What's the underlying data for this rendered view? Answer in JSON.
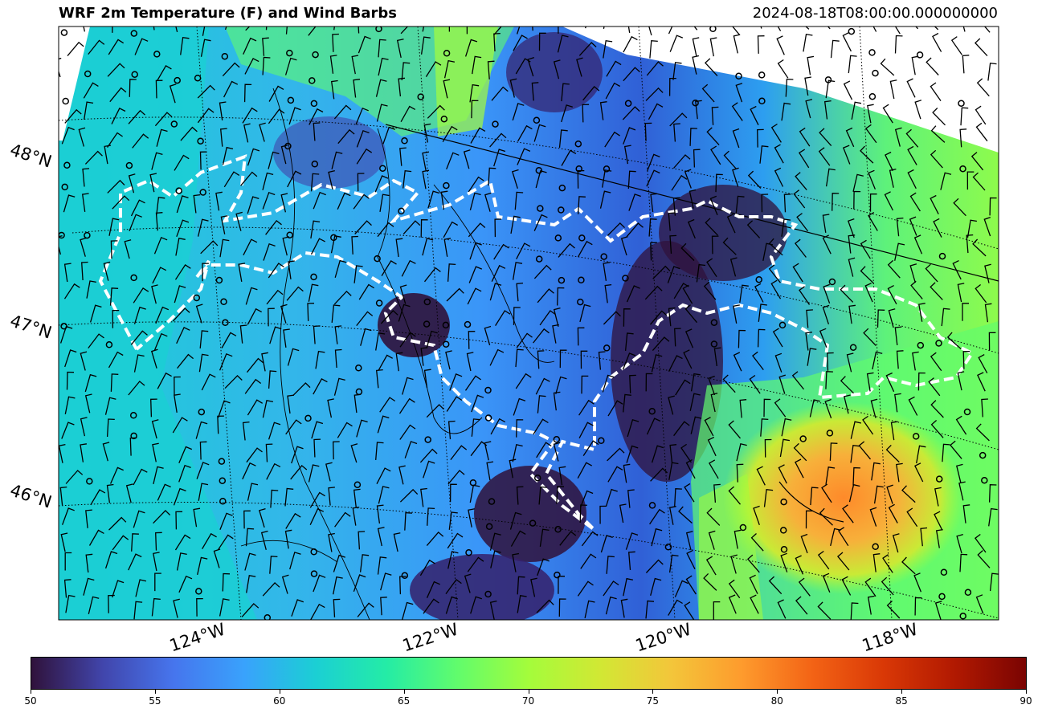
{
  "header": {
    "title": "WRF 2m Temperature (F) and Wind Barbs",
    "timestamp": "2024-08-18T08:00:00.000000000"
  },
  "map": {
    "latitude_labels": [
      "48°N",
      "47°N",
      "46°N"
    ],
    "longitude_labels": [
      "124°W",
      "122°W",
      "120°W",
      "118°W"
    ],
    "field": "2m Temperature (F)",
    "overlay": "Wind Barbs",
    "boundary_style": "white dashed",
    "gridline_style": "black dotted"
  },
  "colorbar": {
    "min": 50,
    "max": 90,
    "ticks": [
      "50",
      "55",
      "60",
      "65",
      "70",
      "75",
      "80",
      "85",
      "90"
    ],
    "colormap": "turbo",
    "colors": [
      "#30123b",
      "#4145ab",
      "#4675ed",
      "#39a2fc",
      "#1bcfd4",
      "#24eca6",
      "#61fc6c",
      "#a4fc3b",
      "#d1e834",
      "#f3c63a",
      "#fe9b2d",
      "#f36315",
      "#d93806",
      "#b11901",
      "#7a0402"
    ]
  }
}
